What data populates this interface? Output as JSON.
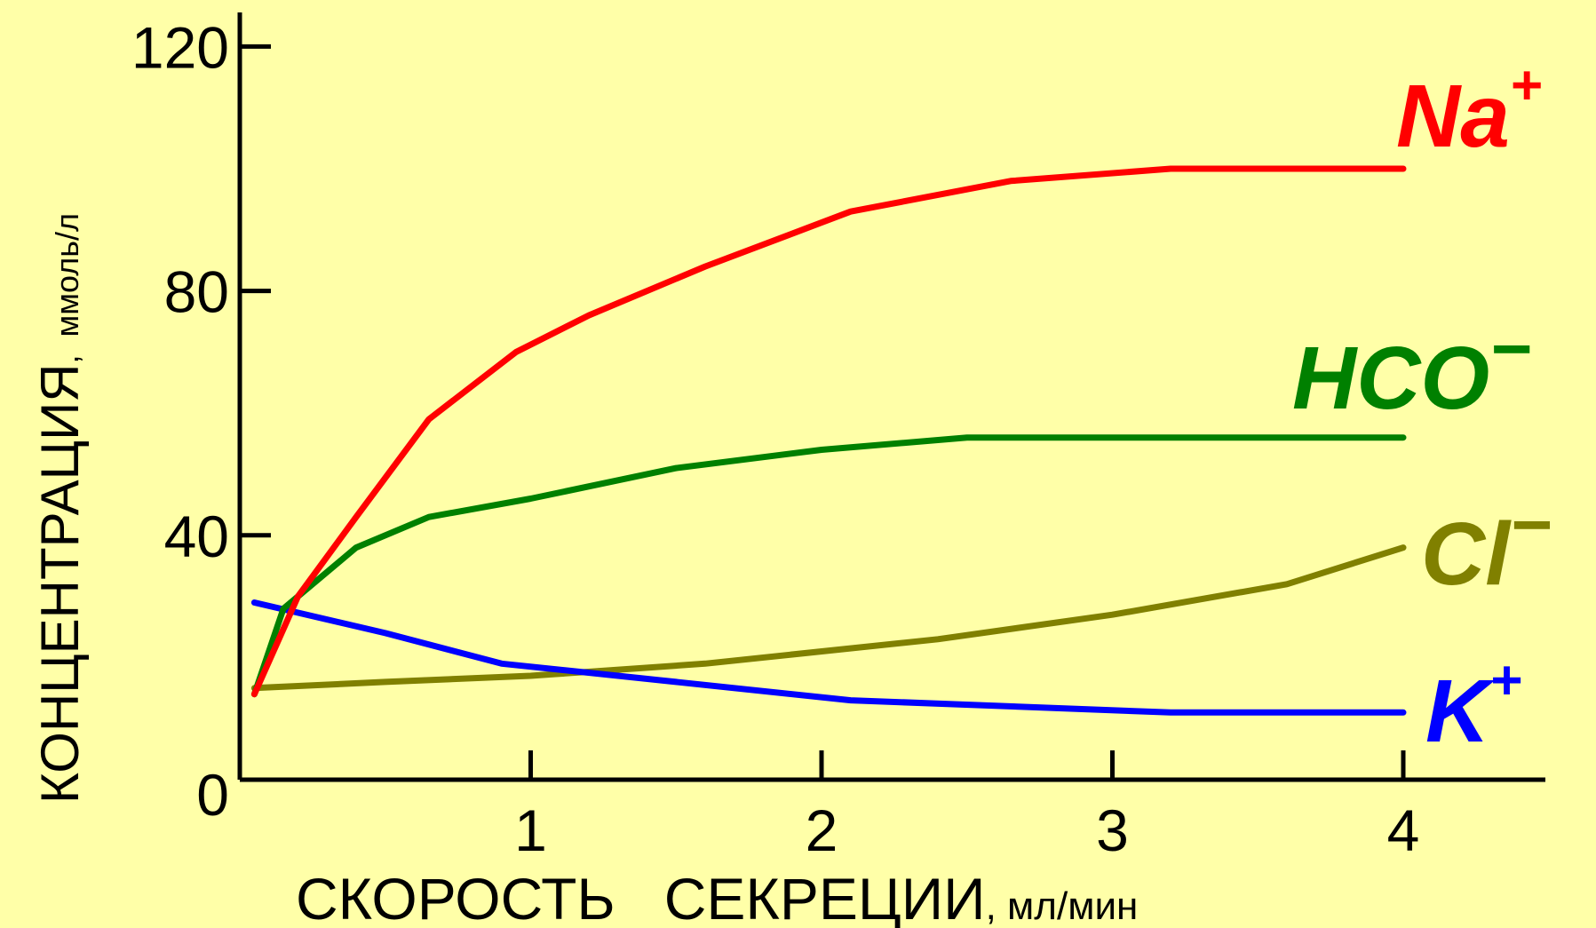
{
  "chart_data": {
    "type": "line",
    "xlabel_main": "СКОРОСТЬ   СЕКРЕЦИИ",
    "xlabel_unit": ", мл/мин",
    "ylabel_main": "КОНЦЕНТРАЦИЯ",
    "ylabel_unit": ",  ммоль/л",
    "xlim": [
      -0.1,
      4.5
    ],
    "ylim": [
      0,
      125
    ],
    "x_ticks": [
      1,
      2,
      3,
      4
    ],
    "x_tick_labels": [
      "1",
      "2",
      "3",
      "4"
    ],
    "y_ticks": [
      0,
      40,
      80,
      120
    ],
    "y_tick_labels": [
      "0",
      "40",
      "80",
      "120"
    ],
    "grid": false,
    "series": [
      {
        "name": "Na",
        "sup": "+",
        "color": "#ff0000",
        "x": [
          0.05,
          0.2,
          0.4,
          0.65,
          0.95,
          1.2,
          1.6,
          2.1,
          2.65,
          3.2,
          4.0
        ],
        "y": [
          14,
          30,
          43,
          59,
          70,
          76,
          84,
          93,
          98,
          100,
          100
        ]
      },
      {
        "name": "HCO",
        "sup": "−",
        "color": "#008000",
        "x": [
          0.05,
          0.15,
          0.4,
          0.65,
          1.0,
          1.5,
          2.0,
          2.5,
          3.0,
          4.0
        ],
        "y": [
          14,
          28,
          38,
          43,
          46,
          51,
          54,
          56,
          56,
          56
        ]
      },
      {
        "name": "Cl",
        "sup": "−",
        "color": "#808000",
        "x": [
          0.05,
          0.5,
          1.0,
          1.6,
          2.4,
          3.0,
          3.6,
          4.0
        ],
        "y": [
          15,
          16,
          17,
          19,
          23,
          27,
          32,
          38
        ]
      },
      {
        "name": "K",
        "sup": "+",
        "color": "#0000ff",
        "x": [
          0.05,
          0.5,
          0.9,
          1.3,
          2.1,
          3.2,
          4.0
        ],
        "y": [
          29,
          24,
          19,
          17,
          13,
          11,
          11
        ]
      }
    ]
  }
}
